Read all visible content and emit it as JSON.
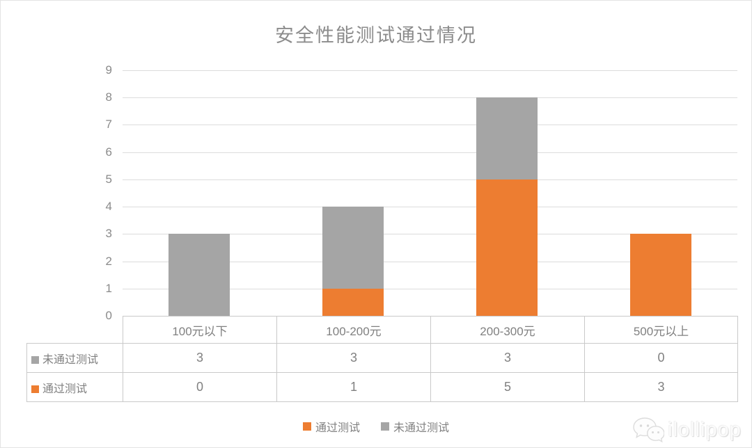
{
  "title": "安全性能测试通过情况",
  "colors": {
    "pass": "#ED7D31",
    "fail": "#A5A5A5",
    "grid": "#DCDCDC",
    "axis_text": "#8A8A8A",
    "table_border": "#C9C9C9",
    "title_text": "#8C8C8C"
  },
  "chart_data": {
    "type": "bar",
    "stacked": true,
    "title": "安全性能测试通过情况",
    "categories": [
      "100元以下",
      "100-200元",
      "200-300元",
      "500元以上"
    ],
    "series": [
      {
        "name": "通过测试",
        "color": "#ED7D31",
        "values": [
          0,
          1,
          5,
          3
        ]
      },
      {
        "name": "未通过测试",
        "color": "#A5A5A5",
        "values": [
          3,
          3,
          3,
          0
        ]
      }
    ],
    "xlabel": "",
    "ylabel": "",
    "ylim": [
      0,
      9
    ],
    "ytick_step": 1,
    "yticks": [
      0,
      1,
      2,
      3,
      4,
      5,
      6,
      7,
      8,
      9
    ],
    "grid": true,
    "legend_position": "bottom",
    "data_table_shown": true
  },
  "table": {
    "headers": [
      "100元以下",
      "100-200元",
      "200-300元",
      "500元以上"
    ],
    "rows": [
      {
        "label": "未通过测试",
        "swatch_color": "#A5A5A5",
        "values": [
          "3",
          "3",
          "3",
          "0"
        ]
      },
      {
        "label": "通过测试",
        "swatch_color": "#ED7D31",
        "values": [
          "0",
          "1",
          "5",
          "3"
        ]
      }
    ]
  },
  "legend": [
    {
      "label": "通过测试",
      "color": "#ED7D31"
    },
    {
      "label": "未通过测试",
      "color": "#A5A5A5"
    }
  ],
  "watermark": {
    "text": "ilollipop",
    "icon": "wechat-logo"
  }
}
